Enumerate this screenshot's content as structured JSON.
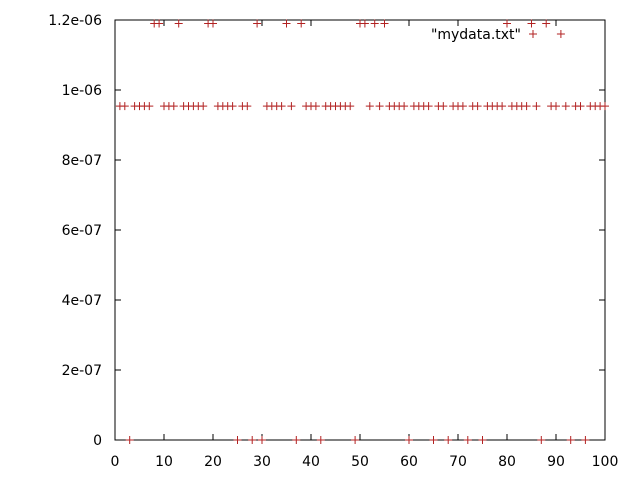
{
  "chart_data": {
    "type": "scatter",
    "title": "",
    "xlabel": "",
    "ylabel": "",
    "xlim": [
      0,
      100
    ],
    "ylim": [
      0,
      1.2e-06
    ],
    "grid": false,
    "legend_position": "top-right",
    "x_ticks": [
      "0",
      "10",
      "20",
      "30",
      "40",
      "50",
      "60",
      "70",
      "80",
      "90",
      "100"
    ],
    "y_ticks": [
      "0",
      "2e-07",
      "4e-07",
      "6e-07",
      "8e-07",
      "1e-06",
      "1.2e-06"
    ],
    "marker_color": "#b22222",
    "marker": "plus",
    "series": [
      {
        "name": "\"mydata.txt\"",
        "x": [
          1,
          2,
          3,
          4,
          5,
          6,
          7,
          8,
          9,
          10,
          11,
          12,
          13,
          14,
          15,
          16,
          17,
          18,
          19,
          20,
          21,
          22,
          23,
          24,
          25,
          26,
          27,
          28,
          29,
          30,
          31,
          32,
          33,
          34,
          35,
          36,
          37,
          38,
          39,
          40,
          41,
          42,
          43,
          44,
          45,
          46,
          47,
          48,
          49,
          50,
          51,
          52,
          53,
          54,
          55,
          56,
          57,
          58,
          59,
          60,
          61,
          62,
          63,
          64,
          65,
          66,
          67,
          68,
          69,
          70,
          71,
          72,
          73,
          74,
          75,
          76,
          77,
          78,
          79,
          80,
          81,
          82,
          83,
          84,
          85,
          86,
          87,
          88,
          89,
          90,
          91,
          92,
          93,
          94,
          95,
          96,
          97,
          98,
          99,
          100
        ],
        "y": [
          9.54e-07,
          9.54e-07,
          0,
          9.54e-07,
          9.54e-07,
          9.54e-07,
          9.54e-07,
          1.19e-06,
          1.19e-06,
          9.54e-07,
          9.54e-07,
          9.54e-07,
          1.19e-06,
          9.54e-07,
          9.54e-07,
          9.54e-07,
          9.54e-07,
          9.54e-07,
          1.19e-06,
          1.19e-06,
          9.54e-07,
          9.54e-07,
          9.54e-07,
          9.54e-07,
          0,
          9.54e-07,
          9.54e-07,
          0,
          1.19e-06,
          0,
          9.54e-07,
          9.54e-07,
          9.54e-07,
          9.54e-07,
          1.19e-06,
          9.54e-07,
          0,
          1.19e-06,
          9.54e-07,
          9.54e-07,
          9.54e-07,
          0,
          9.54e-07,
          9.54e-07,
          9.54e-07,
          9.54e-07,
          9.54e-07,
          9.54e-07,
          0,
          1.19e-06,
          1.19e-06,
          9.54e-07,
          1.19e-06,
          9.54e-07,
          1.19e-06,
          9.54e-07,
          9.54e-07,
          9.54e-07,
          9.54e-07,
          0,
          9.54e-07,
          9.54e-07,
          9.54e-07,
          9.54e-07,
          0,
          9.54e-07,
          9.54e-07,
          0,
          9.54e-07,
          9.54e-07,
          9.54e-07,
          0,
          9.54e-07,
          9.54e-07,
          0,
          9.54e-07,
          9.54e-07,
          9.54e-07,
          9.54e-07,
          1.19e-06,
          9.54e-07,
          9.54e-07,
          9.54e-07,
          9.54e-07,
          1.19e-06,
          9.54e-07,
          0,
          1.19e-06,
          9.54e-07,
          9.54e-07,
          1.16e-06,
          9.54e-07,
          0,
          9.54e-07,
          9.54e-07,
          0,
          9.54e-07,
          9.54e-07,
          9.54e-07,
          9.54e-07
        ]
      }
    ]
  }
}
